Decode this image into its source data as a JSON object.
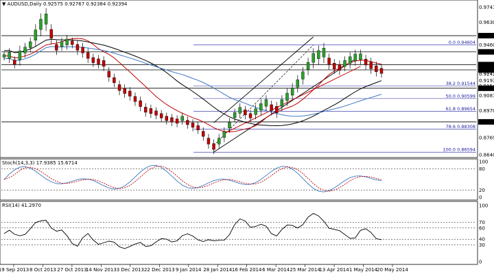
{
  "window": {
    "symbol": "AUDUSD,Daily",
    "ohlc": "0.92575 0.92767 0.92384 0.92394"
  },
  "price_levels": {
    "axis_labels": [
      "0.97410",
      "0.96300",
      "0.95293",
      "0.94604",
      "0.94083",
      "0.93133",
      "0.92738",
      "0.92594",
      "0.92423",
      "0.91936",
      "0.91544",
      "0.91368",
      "0.90810",
      "0.89700",
      "0.88858",
      "0.87690",
      "0.86400"
    ],
    "fib_labels": [
      {
        "label": "0.0 0.94604",
        "price": 0.94604
      },
      {
        "label": "38.2 0.91544",
        "price": 0.91544
      },
      {
        "label": "50.0 0.90599",
        "price": 0.90599
      },
      {
        "label": "61.8 0.89654",
        "price": 0.89654
      },
      {
        "label": "78.6 0.88308",
        "price": 0.88308
      },
      {
        "label": "100.0 0.86594",
        "price": 0.86594
      }
    ],
    "horizontal_lines": [
      0.95293,
      0.94083,
      0.93133,
      0.92738,
      0.91368,
      0.88858
    ]
  },
  "stoch": {
    "title": "Stoch(14,3,3) 17.9385 15.6714",
    "axis_labels": [
      "100",
      "80",
      "20",
      "0"
    ]
  },
  "rsi": {
    "title": "RSI(14) 41.2970",
    "axis_labels": [
      "100",
      "70",
      "60",
      "40",
      "30",
      "0"
    ]
  },
  "x_axis": {
    "labels": [
      "19 Sep 2013",
      "8 Oct 2013",
      "27 Oct 2013",
      "14 Nov 2013",
      "3 Dec 2013",
      "22 Dec 2013",
      "9 Jan 2014",
      "28 Jan 2014",
      "16 Feb 2014",
      "6 Mar 2014",
      "25 Mar 2014",
      "13 Apr 2014",
      "1 May 2014",
      "20 May 2014"
    ]
  },
  "colors": {
    "up": "#2ca02c",
    "down": "#c00000",
    "ma_red": "#c00000",
    "ma_black": "#000000",
    "ma_blue": "#3a78c2",
    "stoch_main": "#3a78c2",
    "stoch_signal": "#c00000",
    "rsi": "#000000",
    "fib": "#1a1aa0"
  },
  "chart_data": {
    "type": "candlestick",
    "price_range": [
      0.864,
      0.9775
    ],
    "close_path": [
      [
        0.936,
        0.9395
      ],
      [
        0.934,
        0.942
      ],
      [
        0.93,
        0.936
      ],
      [
        0.932,
        0.944
      ],
      [
        0.938,
        0.946
      ],
      [
        0.942,
        0.95
      ],
      [
        0.946,
        0.96
      ],
      [
        0.954,
        0.968
      ],
      [
        0.958,
        0.972
      ],
      [
        0.948,
        0.96
      ],
      [
        0.94,
        0.948
      ],
      [
        0.943,
        0.95
      ],
      [
        0.944,
        0.952
      ],
      [
        0.945,
        0.95
      ],
      [
        0.94,
        0.948
      ],
      [
        0.938,
        0.946
      ],
      [
        0.934,
        0.942
      ],
      [
        0.931,
        0.938
      ],
      [
        0.93,
        0.937
      ],
      [
        0.928,
        0.936
      ],
      [
        0.92,
        0.928
      ],
      [
        0.916,
        0.923
      ],
      [
        0.91,
        0.918
      ],
      [
        0.908,
        0.915
      ],
      [
        0.906,
        0.913
      ],
      [
        0.902,
        0.909
      ],
      [
        0.898,
        0.906
      ],
      [
        0.894,
        0.901
      ],
      [
        0.893,
        0.9
      ],
      [
        0.892,
        0.898
      ],
      [
        0.89,
        0.896
      ],
      [
        0.888,
        0.894
      ],
      [
        0.887,
        0.893
      ],
      [
        0.886,
        0.892
      ],
      [
        0.888,
        0.894
      ],
      [
        0.885,
        0.891
      ],
      [
        0.883,
        0.889
      ],
      [
        0.881,
        0.887
      ],
      [
        0.876,
        0.883
      ],
      [
        0.87,
        0.878
      ],
      [
        0.866,
        0.874
      ],
      [
        0.87,
        0.878
      ],
      [
        0.875,
        0.883
      ],
      [
        0.882,
        0.89
      ],
      [
        0.89,
        0.897
      ],
      [
        0.893,
        0.901
      ],
      [
        0.892,
        0.899
      ],
      [
        0.89,
        0.896
      ],
      [
        0.892,
        0.9
      ],
      [
        0.895,
        0.904
      ],
      [
        0.898,
        0.907
      ],
      [
        0.895,
        0.903
      ],
      [
        0.893,
        0.902
      ],
      [
        0.898,
        0.907
      ],
      [
        0.902,
        0.912
      ],
      [
        0.906,
        0.916
      ],
      [
        0.912,
        0.922
      ],
      [
        0.918,
        0.928
      ],
      [
        0.925,
        0.935
      ],
      [
        0.93,
        0.942
      ],
      [
        0.933,
        0.944
      ],
      [
        0.934,
        0.946
      ],
      [
        0.929,
        0.938
      ],
      [
        0.926,
        0.934
      ],
      [
        0.925,
        0.933
      ],
      [
        0.928,
        0.936
      ],
      [
        0.93,
        0.939
      ],
      [
        0.932,
        0.941
      ],
      [
        0.933,
        0.941
      ],
      [
        0.929,
        0.937
      ],
      [
        0.926,
        0.935
      ],
      [
        0.924,
        0.932
      ],
      [
        0.923,
        0.93
      ]
    ]
  }
}
